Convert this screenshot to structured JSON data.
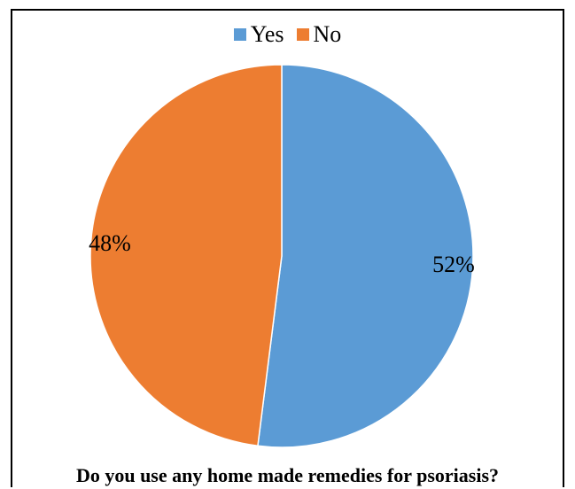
{
  "chart_data": {
    "type": "pie",
    "title": "Do you use any home made remedies for psoriasis?",
    "legend_position": "top",
    "categories": [
      "Yes",
      "No"
    ],
    "values": [
      52,
      48
    ],
    "labels": [
      "52%",
      "48%"
    ],
    "colors": [
      "#5b9bd5",
      "#ed7d31"
    ]
  }
}
